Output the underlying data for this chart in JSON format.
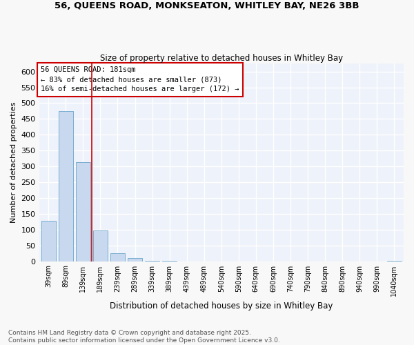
{
  "title_line1": "56, QUEENS ROAD, MONKSEATON, WHITLEY BAY, NE26 3BB",
  "title_line2": "Size of property relative to detached houses in Whitley Bay",
  "xlabel": "Distribution of detached houses by size in Whitley Bay",
  "ylabel": "Number of detached properties",
  "bar_color": "#c8d8ee",
  "bar_edge_color": "#7aaed0",
  "fig_background_color": "#f8f8f8",
  "ax_background_color": "#eef2fa",
  "grid_color": "#ffffff",
  "categories": [
    "39sqm",
    "89sqm",
    "139sqm",
    "189sqm",
    "239sqm",
    "289sqm",
    "339sqm",
    "389sqm",
    "439sqm",
    "489sqm",
    "540sqm",
    "590sqm",
    "640sqm",
    "690sqm",
    "740sqm",
    "790sqm",
    "840sqm",
    "890sqm",
    "940sqm",
    "990sqm",
    "1040sqm"
  ],
  "values": [
    128,
    475,
    313,
    98,
    25,
    10,
    2,
    1,
    0,
    0,
    0,
    0,
    0,
    0,
    0,
    0,
    0,
    0,
    0,
    0,
    1
  ],
  "ylim": [
    0,
    625
  ],
  "yticks": [
    0,
    50,
    100,
    150,
    200,
    250,
    300,
    350,
    400,
    450,
    500,
    550,
    600
  ],
  "redline_index": 2.5,
  "annotation_text": "56 QUEENS ROAD: 181sqm\n← 83% of detached houses are smaller (873)\n16% of semi-detached houses are larger (172) →",
  "annotation_box_color": "#ffffff",
  "annotation_box_edge": "#cc0000",
  "annotation_text_color": "#000000",
  "redline_color": "#cc0000",
  "footer_line1": "Contains HM Land Registry data © Crown copyright and database right 2025.",
  "footer_line2": "Contains public sector information licensed under the Open Government Licence v3.0."
}
